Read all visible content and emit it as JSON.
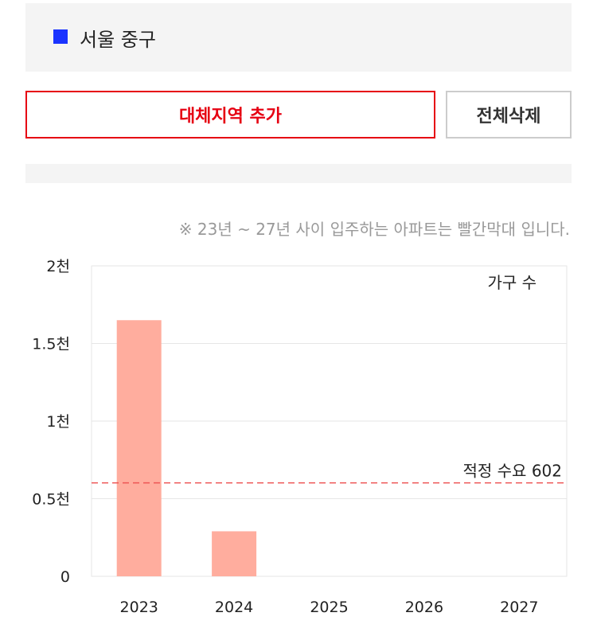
{
  "region": {
    "name": "서울 중구",
    "marker_color": "#1a33ff"
  },
  "buttons": {
    "add_label": "대체지역 추가",
    "clear_label": "전체삭제"
  },
  "note": "※ 23년 ~ 27년 사이 입주하는 아파트는 빨간막대 입니다.",
  "chart_data": {
    "type": "bar",
    "legend_label": "가구 수",
    "categories": [
      "2023",
      "2024",
      "2025",
      "2026",
      "2027"
    ],
    "values": [
      1650,
      290,
      0,
      0,
      0
    ],
    "ylim": [
      0,
      2000
    ],
    "yticks": [
      0,
      500,
      1000,
      1500,
      2000
    ],
    "ytick_labels": [
      "0",
      "0.5천",
      "1천",
      "1.5천",
      "2천"
    ],
    "bar_color": "#ffad9e",
    "reference_line": {
      "value": 602,
      "label": "적정 수요 602",
      "color": "#ee5555"
    },
    "grid": true
  }
}
